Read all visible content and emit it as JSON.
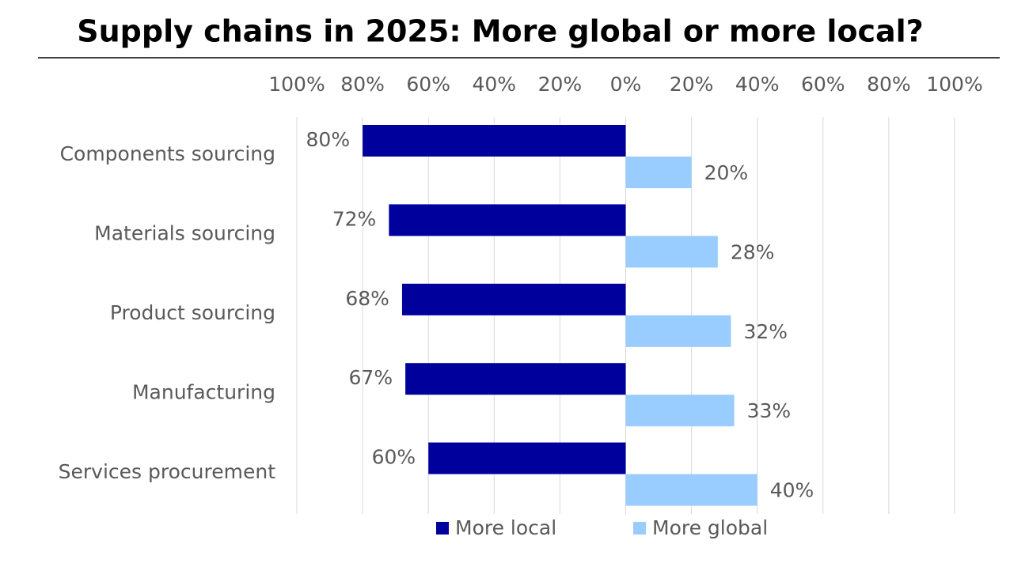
{
  "chart_data": {
    "type": "diverging-bar",
    "title": "Supply chains in 2025: More global or more local?",
    "categories": [
      "Components sourcing",
      "Materials sourcing",
      "Product sourcing",
      "Manufacturing",
      "Services procurement"
    ],
    "series": [
      {
        "name": "More local",
        "color": "#00009c",
        "values": [
          -80,
          -72,
          -68,
          -67,
          -60
        ],
        "value_labels": [
          "80%",
          "72%",
          "68%",
          "67%",
          "60%"
        ]
      },
      {
        "name": "More global",
        "color": "#99ccff",
        "values": [
          20,
          28,
          32,
          33,
          40
        ],
        "value_labels": [
          "20%",
          "28%",
          "32%",
          "33%",
          "40%"
        ]
      }
    ],
    "xlim": [
      -100,
      100
    ],
    "xticks": [
      {
        "value": -100,
        "label": "100%"
      },
      {
        "value": -80,
        "label": "80%"
      },
      {
        "value": -60,
        "label": "60%"
      },
      {
        "value": -40,
        "label": "40%"
      },
      {
        "value": -20,
        "label": "20%"
      },
      {
        "value": 0,
        "label": "0%"
      },
      {
        "value": 20,
        "label": "20%"
      },
      {
        "value": 40,
        "label": "40%"
      },
      {
        "value": 60,
        "label": "60%"
      },
      {
        "value": 80,
        "label": "80%"
      },
      {
        "value": 100,
        "label": "100%"
      }
    ],
    "grid": true
  }
}
